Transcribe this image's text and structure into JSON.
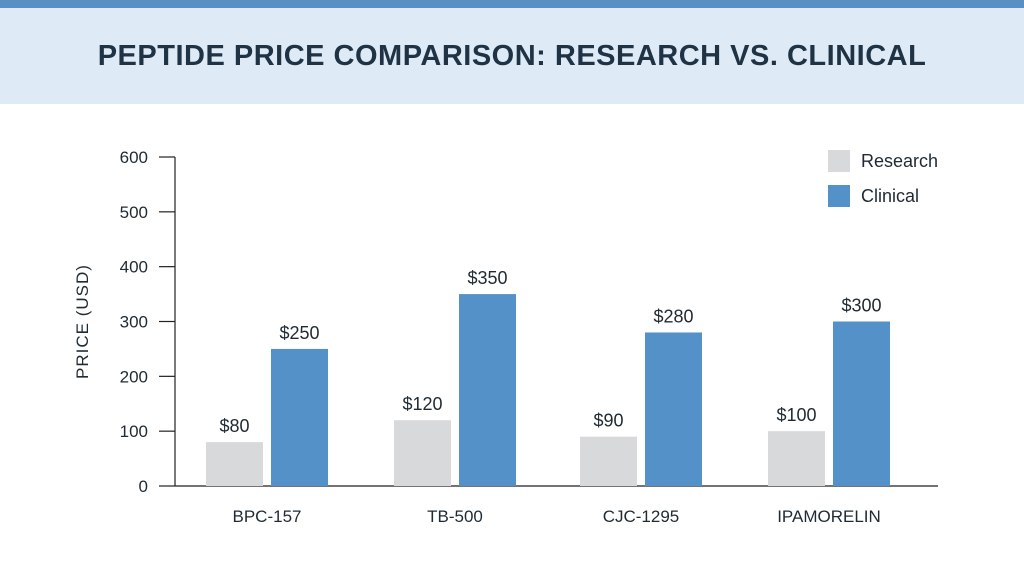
{
  "colors": {
    "top_bar": "#5a8fc4",
    "title_band": "#deebf6",
    "research": "#d7d9db",
    "clinical": "#5491c8",
    "axis": "#222222"
  },
  "chart_data": {
    "type": "bar",
    "title": "PEPTIDE PRICE COMPARISON: RESEARCH VS. CLINICAL",
    "xlabel": "",
    "ylabel": "PRICE (USD)",
    "ylim": [
      0,
      600
    ],
    "yticks": [
      0,
      100,
      200,
      300,
      400,
      500,
      600
    ],
    "categories": [
      "BPC-157",
      "TB-500",
      "CJC-1295",
      "IPAMORELIN"
    ],
    "series": [
      {
        "name": "Research",
        "values": [
          80,
          120,
          90,
          100
        ],
        "labels": [
          "$80",
          "$120",
          "$90",
          "$100"
        ]
      },
      {
        "name": "Clinical",
        "values": [
          250,
          350,
          280,
          300
        ],
        "labels": [
          "$250",
          "$350",
          "$280",
          "$300"
        ]
      }
    ],
    "grid": false,
    "legend": "top-right"
  }
}
